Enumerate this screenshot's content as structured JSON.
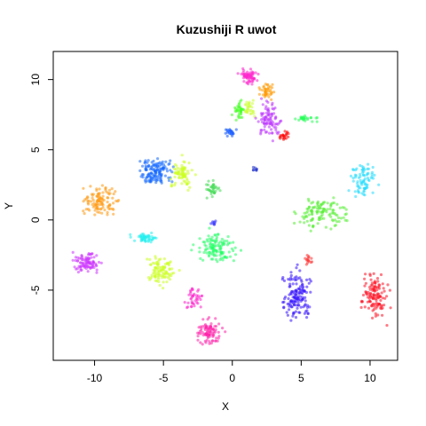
{
  "chart_data": {
    "type": "scatter",
    "title": "Kuzushiji R uwot",
    "xlabel": "X",
    "ylabel": "Y",
    "xlim": [
      -13,
      12
    ],
    "ylim": [
      -10,
      12
    ],
    "xticks": [
      -10,
      -5,
      0,
      5,
      10
    ],
    "yticks": [
      -5,
      0,
      5,
      10
    ],
    "xtick_labels": [
      "-10",
      "-5",
      "0",
      "5",
      "10"
    ],
    "ytick_labels": [
      "-5",
      "0",
      "5",
      "10"
    ],
    "grid": false,
    "legend": "none",
    "clusters": [
      {
        "color": "#ff22cc",
        "cx": 1.2,
        "cy": 10.2,
        "rx": 0.6,
        "ry": 0.5,
        "n": 60
      },
      {
        "color": "#ff9900",
        "cx": 2.5,
        "cy": 9.2,
        "rx": 0.5,
        "ry": 0.5,
        "n": 40
      },
      {
        "color": "#44ff22",
        "cx": 0.5,
        "cy": 7.8,
        "rx": 0.4,
        "ry": 0.6,
        "n": 35
      },
      {
        "color": "#ccff33",
        "cx": 1.3,
        "cy": 7.9,
        "rx": 0.4,
        "ry": 0.5,
        "n": 30
      },
      {
        "color": "#bb33ff",
        "cx": 2.7,
        "cy": 7.1,
        "rx": 0.8,
        "ry": 1.2,
        "n": 90
      },
      {
        "color": "#22ff55",
        "cx": 5.3,
        "cy": 7.2,
        "rx": 0.8,
        "ry": 0.2,
        "n": 25
      },
      {
        "color": "#ff0000",
        "cx": 3.7,
        "cy": 6.0,
        "rx": 0.4,
        "ry": 0.3,
        "n": 20
      },
      {
        "color": "#1155ff",
        "cx": -0.2,
        "cy": 6.2,
        "rx": 0.4,
        "ry": 0.3,
        "n": 20
      },
      {
        "color": "#2233cc",
        "cx": 1.6,
        "cy": 3.6,
        "rx": 0.2,
        "ry": 0.15,
        "n": 8
      },
      {
        "color": "#22ddff",
        "cx": 9.5,
        "cy": 2.8,
        "rx": 0.9,
        "ry": 1.2,
        "n": 80
      },
      {
        "color": "#55ee33",
        "cx": 6.5,
        "cy": 0.5,
        "rx": 1.6,
        "ry": 1.1,
        "n": 120
      },
      {
        "color": "#1166ff",
        "cx": -5.5,
        "cy": 3.4,
        "rx": 1.2,
        "ry": 1.0,
        "n": 130
      },
      {
        "color": "#ccff22",
        "cx": -3.7,
        "cy": 3.3,
        "rx": 0.8,
        "ry": 0.9,
        "n": 80
      },
      {
        "color": "#44dd55",
        "cx": -1.4,
        "cy": 2.2,
        "rx": 0.5,
        "ry": 0.5,
        "n": 35
      },
      {
        "color": "#ff9911",
        "cx": -9.5,
        "cy": 1.4,
        "rx": 1.2,
        "ry": 1.0,
        "n": 110
      },
      {
        "color": "#22eeee",
        "cx": -6.3,
        "cy": -1.3,
        "rx": 0.9,
        "ry": 0.3,
        "n": 50
      },
      {
        "color": "#3333ff",
        "cx": -1.4,
        "cy": -0.2,
        "rx": 0.2,
        "ry": 0.2,
        "n": 8
      },
      {
        "color": "#22ff66",
        "cx": -1.2,
        "cy": -2.0,
        "rx": 1.3,
        "ry": 1.0,
        "n": 120
      },
      {
        "color": "#cc33ff",
        "cx": -10.6,
        "cy": -3.0,
        "rx": 1.0,
        "ry": 0.7,
        "n": 90
      },
      {
        "color": "#ccff22",
        "cx": -5.2,
        "cy": -3.6,
        "rx": 1.0,
        "ry": 1.0,
        "n": 100
      },
      {
        "color": "#ff22cc",
        "cx": -2.8,
        "cy": -5.5,
        "rx": 0.6,
        "ry": 0.8,
        "n": 40
      },
      {
        "color": "#ff22aa",
        "cx": -1.7,
        "cy": -8.0,
        "rx": 0.9,
        "ry": 0.9,
        "n": 90
      },
      {
        "color": "#3311ff",
        "cx": 4.7,
        "cy": -5.3,
        "rx": 1.0,
        "ry": 1.7,
        "n": 140
      },
      {
        "color": "#ff1122",
        "cx": 10.3,
        "cy": -5.4,
        "rx": 0.8,
        "ry": 1.4,
        "n": 120
      },
      {
        "color": "#ff3333",
        "cx": 5.5,
        "cy": -2.8,
        "rx": 0.3,
        "ry": 0.5,
        "n": 15
      }
    ]
  }
}
